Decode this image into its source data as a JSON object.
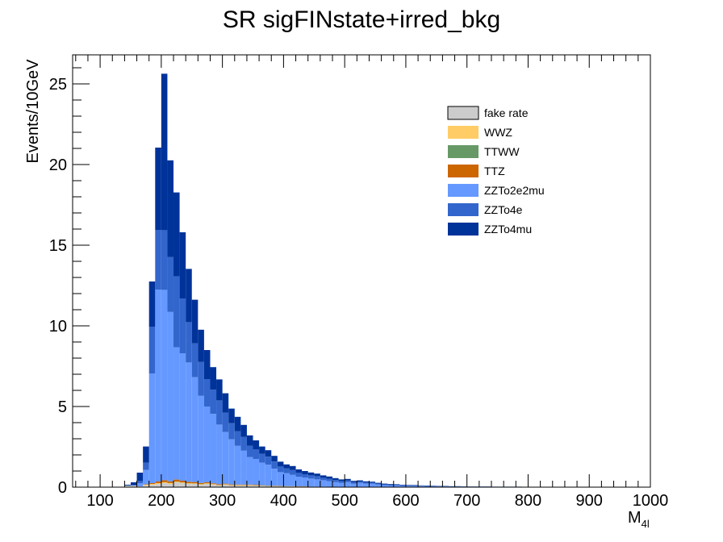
{
  "chart_data": {
    "type": "bar",
    "stacked": true,
    "title": "SR sigFINstate+irred_bkg",
    "xlabel": "M",
    "xlabel_sub": "4l",
    "ylabel": "Events/10GeV",
    "xlim": [
      55,
      1000
    ],
    "ylim": [
      0,
      26.8
    ],
    "x_ticks": [
      "100",
      "200",
      "300",
      "400",
      "500",
      "600",
      "700",
      "800",
      "900",
      "1000"
    ],
    "y_ticks": [
      "0",
      "5",
      "10",
      "15",
      "20",
      "25"
    ],
    "legend_position": "top-right",
    "legend": [
      {
        "name": "fake rate",
        "color": "#cccccc"
      },
      {
        "name": "WWZ",
        "color": "#ffcc66"
      },
      {
        "name": "TTWW",
        "color": "#669966"
      },
      {
        "name": "TTZ",
        "color": "#cc6600"
      },
      {
        "name": "ZZTo2e2mu",
        "color": "#6699ff"
      },
      {
        "name": "ZZTo4e",
        "color": "#3366cc"
      },
      {
        "name": "ZZTo4mu",
        "color": "#003399"
      }
    ],
    "bin_width": 10,
    "x": [
      145,
      155,
      165,
      175,
      185,
      195,
      205,
      215,
      225,
      235,
      245,
      255,
      265,
      275,
      285,
      295,
      305,
      315,
      325,
      335,
      345,
      355,
      365,
      375,
      385,
      395,
      405,
      415,
      425,
      435,
      445,
      455,
      465,
      475,
      485,
      495,
      505,
      515,
      525,
      535,
      545,
      555,
      565,
      575,
      585,
      595,
      605,
      615,
      625,
      635,
      645,
      655,
      665,
      675,
      685,
      695,
      705,
      715,
      725,
      735,
      745,
      755,
      765,
      775,
      785,
      795,
      805,
      815
    ],
    "series": [
      {
        "name": "fake rate",
        "color": "#cccccc",
        "values": [
          0.1,
          0.1,
          0.05,
          0.1,
          0.15,
          0.2,
          0.25,
          0.2,
          0.3,
          0.25,
          0.2,
          0.2,
          0.15,
          0.2,
          0.15,
          0.1,
          0.15,
          0.1,
          0.1,
          0.1,
          0.1,
          0.1,
          0.08,
          0.05,
          0.05,
          0.05,
          0.04,
          0.04,
          0.03,
          0.03,
          0.02,
          0.02,
          0.02,
          0.02,
          0.01,
          0.01,
          0.01,
          0.01,
          0.01,
          0.01,
          0.01,
          0.01,
          0,
          0,
          0,
          0,
          0,
          0,
          0,
          0,
          0,
          0,
          0,
          0,
          0,
          0,
          0,
          0,
          0,
          0,
          0,
          0,
          0,
          0,
          0,
          0,
          0,
          0
        ]
      },
      {
        "name": "WWZ",
        "color": "#ffcc66",
        "values": [
          0,
          0,
          0,
          0.05,
          0.05,
          0.05,
          0.05,
          0.05,
          0.04,
          0.04,
          0.04,
          0.03,
          0.03,
          0.03,
          0.03,
          0.02,
          0.02,
          0.02,
          0.02,
          0.02,
          0.02,
          0.01,
          0.01,
          0.01,
          0.01,
          0.01,
          0.01,
          0.01,
          0.01,
          0.01,
          0,
          0,
          0,
          0,
          0,
          0,
          0,
          0,
          0,
          0,
          0,
          0,
          0,
          0,
          0,
          0,
          0,
          0,
          0,
          0,
          0,
          0,
          0,
          0,
          0,
          0,
          0,
          0,
          0,
          0,
          0,
          0,
          0,
          0,
          0,
          0,
          0,
          0
        ]
      },
      {
        "name": "TTWW",
        "color": "#669966",
        "values": [
          0,
          0,
          0,
          0,
          0,
          0,
          0.01,
          0.01,
          0.01,
          0.01,
          0.01,
          0.01,
          0.01,
          0.01,
          0.01,
          0.01,
          0.01,
          0.01,
          0.01,
          0.01,
          0.01,
          0.01,
          0.01,
          0.01,
          0.01,
          0,
          0,
          0,
          0,
          0,
          0,
          0,
          0,
          0,
          0,
          0,
          0,
          0,
          0,
          0,
          0,
          0,
          0,
          0,
          0,
          0,
          0,
          0,
          0,
          0,
          0,
          0,
          0,
          0,
          0,
          0,
          0,
          0,
          0,
          0,
          0,
          0,
          0,
          0,
          0,
          0,
          0,
          0
        ]
      },
      {
        "name": "TTZ",
        "color": "#cc6600",
        "values": [
          0,
          0,
          0,
          0.02,
          0.05,
          0.1,
          0.12,
          0.1,
          0.12,
          0.1,
          0.08,
          0.08,
          0.07,
          0.06,
          0.05,
          0.05,
          0.04,
          0.04,
          0.03,
          0.03,
          0.03,
          0.03,
          0.02,
          0.02,
          0.02,
          0.02,
          0.01,
          0.01,
          0.01,
          0.01,
          0.01,
          0.01,
          0.01,
          0,
          0,
          0,
          0,
          0,
          0,
          0,
          0,
          0,
          0,
          0,
          0,
          0,
          0,
          0,
          0,
          0,
          0,
          0,
          0,
          0,
          0,
          0,
          0,
          0,
          0,
          0,
          0,
          0,
          0,
          0,
          0,
          0,
          0,
          0
        ]
      },
      {
        "name": "ZZTo2e2mu",
        "color": "#6699ff",
        "values": [
          0,
          0,
          0.2,
          0.9,
          6.8,
          11.9,
          11.8,
          10.5,
          8.2,
          7.9,
          7.4,
          6.5,
          5.4,
          4.7,
          4.3,
          3.7,
          3.2,
          2.8,
          2.4,
          2.1,
          1.7,
          1.6,
          1.4,
          1.3,
          1.05,
          0.85,
          0.8,
          0.7,
          0.6,
          0.55,
          0.5,
          0.45,
          0.4,
          0.35,
          0.3,
          0.25,
          0.3,
          0.2,
          0.25,
          0.2,
          0.2,
          0.15,
          0.12,
          0.1,
          0.1,
          0.08,
          0.08,
          0.07,
          0.06,
          0.05,
          0.05,
          0.04,
          0.04,
          0.03,
          0.03,
          0.03,
          0.02,
          0.02,
          0.02,
          0.02,
          0.01,
          0.01,
          0.01,
          0.01,
          0.01,
          0.01,
          0,
          0
        ]
      },
      {
        "name": "ZZTo4e",
        "color": "#3366cc",
        "values": [
          0,
          0.05,
          0.15,
          0.45,
          2.9,
          3.7,
          3.7,
          3.4,
          4.4,
          3.4,
          2.5,
          2.1,
          2.1,
          1.7,
          1.5,
          1.5,
          1.2,
          1.0,
          0.9,
          0.85,
          0.7,
          0.6,
          0.55,
          0.5,
          0.45,
          0.35,
          0.3,
          0.3,
          0.25,
          0.2,
          0.2,
          0.2,
          0.15,
          0.15,
          0.13,
          0.12,
          0.1,
          0.1,
          0.08,
          0.08,
          0.07,
          0.06,
          0.05,
          0.05,
          0.04,
          0.04,
          0.03,
          0.03,
          0.03,
          0.03,
          0.02,
          0.02,
          0.02,
          0.02,
          0.02,
          0.01,
          0.01,
          0.01,
          0.01,
          0.01,
          0.01,
          0.01,
          0.01,
          0.01,
          0.01,
          0,
          0,
          0
        ]
      },
      {
        "name": "ZZTo4mu",
        "color": "#003399",
        "values": [
          0.05,
          0.15,
          0.5,
          1.0,
          2.8,
          5.1,
          9.7,
          6.0,
          5.2,
          4.1,
          3.3,
          2.7,
          2.0,
          1.8,
          1.4,
          1.3,
          1.2,
          0.9,
          0.9,
          0.75,
          0.65,
          0.55,
          0.45,
          0.4,
          0.35,
          0.3,
          0.25,
          0.25,
          0.2,
          0.2,
          0.18,
          0.16,
          0.15,
          0.14,
          0.12,
          0.1,
          0.1,
          0.08,
          0.08,
          0.07,
          0.06,
          0.05,
          0.05,
          0.04,
          0.04,
          0.03,
          0.03,
          0.03,
          0.02,
          0.02,
          0.02,
          0.02,
          0.02,
          0.01,
          0.01,
          0.01,
          0.01,
          0.01,
          0.01,
          0.01,
          0.01,
          0.01,
          0.01,
          0.01,
          0.01,
          0.01,
          0.01,
          0.01
        ]
      }
    ]
  }
}
